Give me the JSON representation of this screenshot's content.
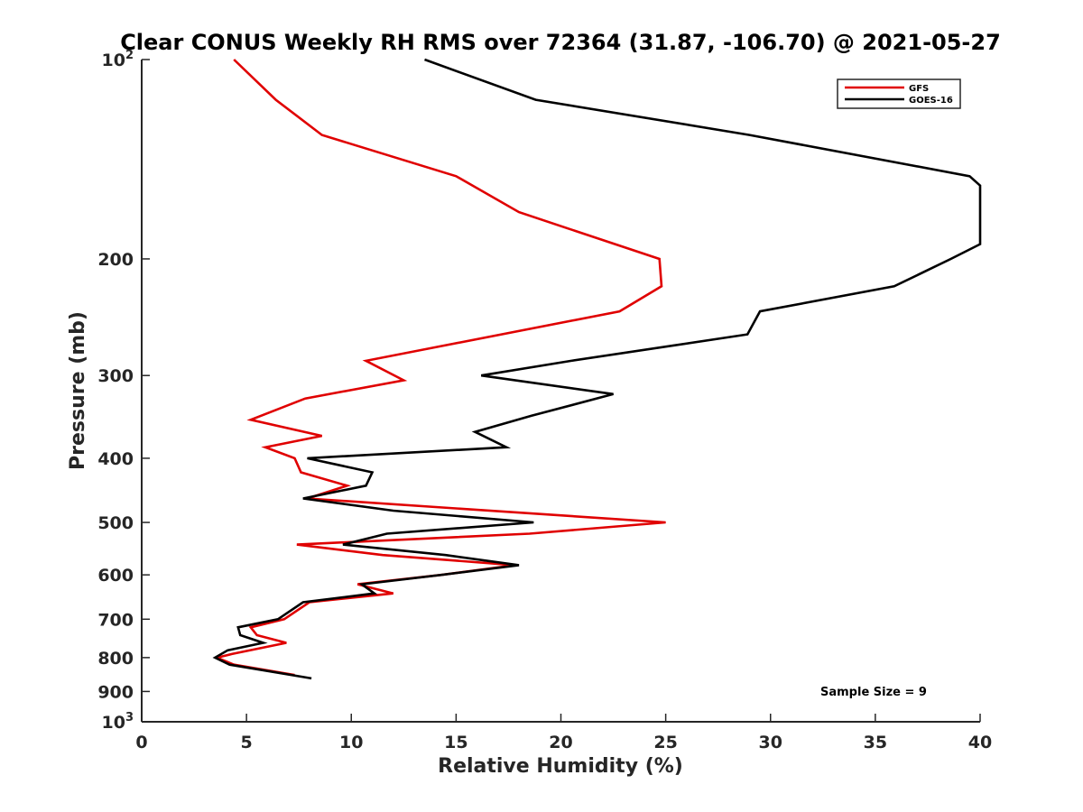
{
  "chart_data": {
    "type": "line",
    "title": "Clear CONUS Weekly RH RMS over 72364 (31.87, -106.70) @ 2021-05-27",
    "xlabel": "Relative Humidity (%)",
    "ylabel": "Pressure (mb)",
    "xlim": [
      0,
      40
    ],
    "ylim": [
      100,
      1000
    ],
    "y_scale": "log",
    "y_reversed": true,
    "x_ticks": [
      "0",
      "5",
      "10",
      "15",
      "20",
      "25",
      "30",
      "35",
      "40"
    ],
    "y_ticks": [
      {
        "value": 100,
        "base": "10",
        "exp": "2"
      },
      {
        "value": 200,
        "label": "200"
      },
      {
        "value": 300,
        "label": "300"
      },
      {
        "value": 400,
        "label": "400"
      },
      {
        "value": 500,
        "label": "500"
      },
      {
        "value": 600,
        "label": "600"
      },
      {
        "value": 700,
        "label": "700"
      },
      {
        "value": 800,
        "label": "800"
      },
      {
        "value": 900,
        "label": "900"
      },
      {
        "value": 1000,
        "base": "10",
        "exp": "3"
      }
    ],
    "grid": false,
    "legend_position": "top-right",
    "annotation": "Sample Size = 9",
    "series": [
      {
        "name": "GFS",
        "color": "#e00000",
        "points": [
          [
            4.4,
            100
          ],
          [
            6.4,
            115
          ],
          [
            8.6,
            130
          ],
          [
            15.0,
            150
          ],
          [
            18.0,
            170
          ],
          [
            24.7,
            200
          ],
          [
            24.8,
            220
          ],
          [
            22.8,
            240
          ],
          [
            10.7,
            285
          ],
          [
            12.5,
            305
          ],
          [
            7.8,
            325
          ],
          [
            5.2,
            350
          ],
          [
            8.6,
            370
          ],
          [
            5.9,
            385
          ],
          [
            7.3,
            400
          ],
          [
            7.6,
            420
          ],
          [
            9.8,
            440
          ],
          [
            7.9,
            460
          ],
          [
            25.0,
            500
          ],
          [
            18.5,
            520
          ],
          [
            7.4,
            540
          ],
          [
            11.5,
            560
          ],
          [
            17.8,
            580
          ],
          [
            14.3,
            600
          ],
          [
            10.3,
            620
          ],
          [
            12.0,
            640
          ],
          [
            8.0,
            660
          ],
          [
            6.8,
            700
          ],
          [
            5.2,
            720
          ],
          [
            5.5,
            740
          ],
          [
            6.9,
            760
          ],
          [
            4.3,
            790
          ],
          [
            3.6,
            800
          ],
          [
            4.4,
            820
          ],
          [
            7.3,
            850
          ]
        ]
      },
      {
        "name": "GOES-16",
        "color": "#000000",
        "points": [
          [
            13.5,
            100
          ],
          [
            18.8,
            115
          ],
          [
            29.0,
            130
          ],
          [
            39.5,
            150
          ],
          [
            40.0,
            155
          ],
          [
            40.0,
            190
          ],
          [
            38.6,
            200
          ],
          [
            35.9,
            220
          ],
          [
            29.5,
            240
          ],
          [
            28.9,
            260
          ],
          [
            20.5,
            285
          ],
          [
            16.2,
            300
          ],
          [
            22.5,
            320
          ],
          [
            18.6,
            345
          ],
          [
            15.9,
            365
          ],
          [
            17.4,
            385
          ],
          [
            7.9,
            400
          ],
          [
            11.0,
            420
          ],
          [
            10.7,
            440
          ],
          [
            7.7,
            460
          ],
          [
            12.0,
            480
          ],
          [
            18.7,
            500
          ],
          [
            11.7,
            520
          ],
          [
            9.6,
            540
          ],
          [
            14.5,
            560
          ],
          [
            18.0,
            580
          ],
          [
            14.3,
            600
          ],
          [
            10.5,
            620
          ],
          [
            11.1,
            640
          ],
          [
            7.7,
            660
          ],
          [
            6.5,
            700
          ],
          [
            4.6,
            720
          ],
          [
            4.7,
            740
          ],
          [
            5.8,
            760
          ],
          [
            4.1,
            780
          ],
          [
            3.5,
            800
          ],
          [
            4.2,
            820
          ],
          [
            8.1,
            860
          ]
        ]
      }
    ]
  }
}
